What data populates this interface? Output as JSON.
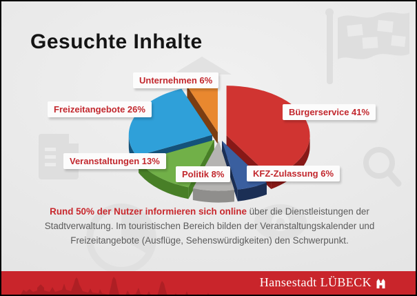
{
  "title": "Gesuchte Inhalte",
  "chart_data": {
    "type": "pie",
    "style": "3d-exploded",
    "title": "Gesuchte Inhalte",
    "legend_position": "callout-labels-around-pie",
    "unit": "%",
    "slices": [
      {
        "name": "Bürgerservice",
        "value": 41,
        "label": "Bürgerservice 41%",
        "color": "#D03431",
        "side_color": "#871917"
      },
      {
        "name": "KFZ-Zulassung",
        "value": 6,
        "label": "KFZ-Zulassung 6%",
        "color": "#3A5F9F",
        "side_color": "#1B2F55"
      },
      {
        "name": "Politik",
        "value": 8,
        "label": "Politik 8%",
        "color": "#B5B4B2",
        "side_color": "#8F8E8C"
      },
      {
        "name": "Veranstaltungen",
        "value": 13,
        "label": "Veranstaltungen 13%",
        "color": "#71B048",
        "side_color": "#487F27"
      },
      {
        "name": "Freizeitangebote",
        "value": 26,
        "label": "Freizeitangebote 26%",
        "color": "#2FA0D9",
        "side_color": "#14527A"
      },
      {
        "name": "Unternehmen",
        "value": 6,
        "label": "Unternehmen 6%",
        "color": "#E9882F",
        "side_color": "#7C3D11"
      }
    ]
  },
  "body": {
    "highlight": "Rund 50% der Nutzer informieren sich online",
    "rest": " über die Dienstleistungen der Stadtverwaltung. Im touristischen Bereich bilden der Veranstaltungskalender und Freizeitangebote (Ausflüge, Sehenswürdigkeiten) den Schwerpunkt."
  },
  "footer": {
    "logo_text": "Hansestadt LÜBECK"
  },
  "colors": {
    "accent_red": "#C8282D",
    "label_text": "#C2272D",
    "footer_bg": "#C9252B",
    "footer_skyline": "#AE1F24",
    "title_text": "#141414",
    "body_text": "#5B5B5B",
    "background": "#E8E8E8",
    "watermark": "#DFDFDF"
  }
}
